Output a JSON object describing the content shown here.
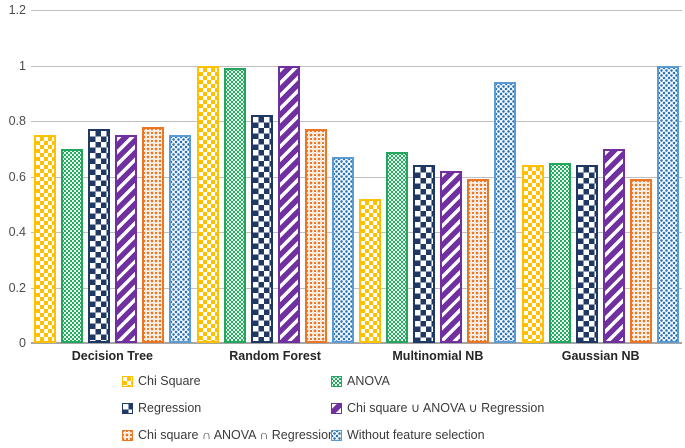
{
  "chart_data": {
    "type": "bar",
    "title": "",
    "xlabel": "",
    "ylabel": "",
    "categories": [
      "Decision Tree",
      "Random Forest",
      "Multinomial NB",
      "Gaussian NB"
    ],
    "series": [
      {
        "name": "Chi Square",
        "color": "#FFC000",
        "pattern": "checker",
        "values": [
          0.75,
          1.0,
          0.52,
          0.64
        ]
      },
      {
        "name": "ANOVA",
        "color": "#21A65C",
        "pattern": "dots",
        "values": [
          0.7,
          0.99,
          0.69,
          0.65
        ]
      },
      {
        "name": "Regression",
        "color": "#1F3864",
        "pattern": "checker-lg",
        "values": [
          0.77,
          0.82,
          0.64,
          0.64
        ]
      },
      {
        "name": "Chi square ∪ ANOVA ∪ Regression",
        "color": "#7030A0",
        "pattern": "diag",
        "values": [
          0.75,
          1.0,
          0.62,
          0.7
        ]
      },
      {
        "name": "Chi square ∩ ANOVA ∩ Regression",
        "color": "#EC7623",
        "pattern": "rings",
        "values": [
          0.78,
          0.77,
          0.59,
          0.59
        ]
      },
      {
        "name": "Without feature selection",
        "color": "#5B9BD5",
        "pattern": "speckle",
        "dot_color": "#2E75B6",
        "values": [
          0.75,
          0.67,
          0.94,
          1.0
        ]
      }
    ],
    "ylim": [
      0,
      1.2
    ],
    "ytick_values": [
      1.2,
      1,
      0.8,
      0.6,
      0.4,
      0.2,
      0
    ],
    "ytick_labels": [
      "1.2",
      "1",
      "0.8",
      "0.6",
      "0.4",
      "0.2",
      "0"
    ],
    "grid": true,
    "gridline_color": "#BFBFBF",
    "axis_color": "#A6A6A6",
    "legend_position": "bottom",
    "legend_columns": 2
  }
}
